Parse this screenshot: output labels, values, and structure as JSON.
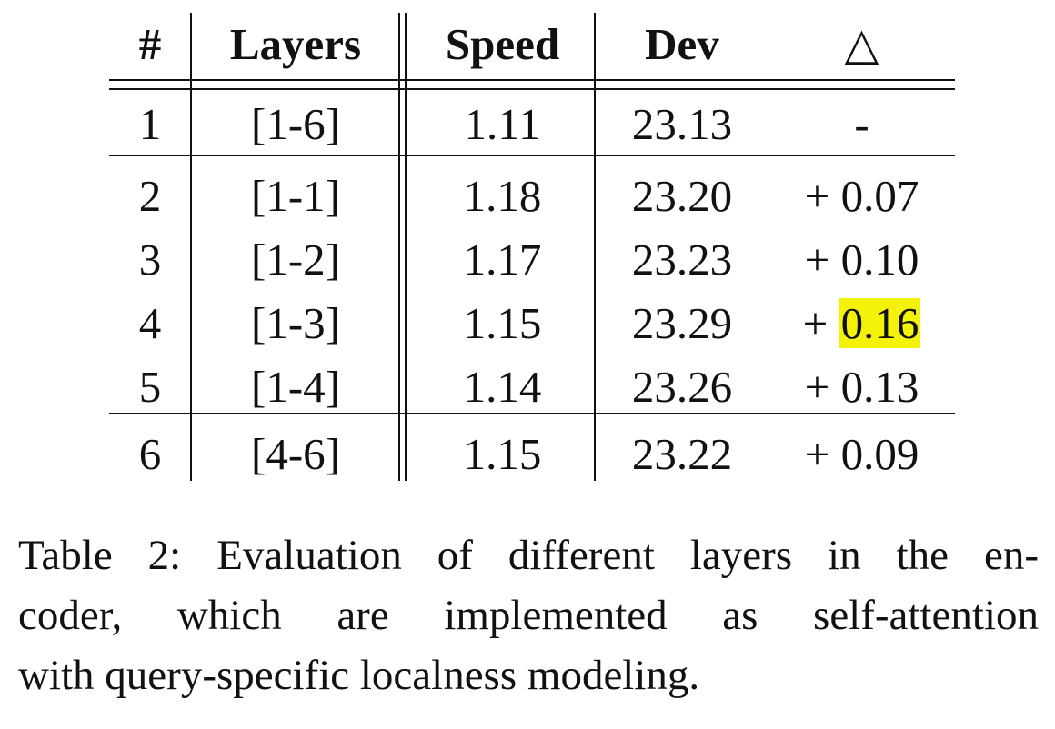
{
  "table": {
    "headers": {
      "num": "#",
      "layers": "Layers",
      "speed": "Speed",
      "dev": "Dev",
      "delta": "△"
    },
    "rows": [
      {
        "num": "1",
        "layers": "[1-6]",
        "speed": "1.11",
        "dev": "23.13",
        "delta_sign": "",
        "delta_value": "-",
        "highlighted": false
      },
      {
        "num": "2",
        "layers": "[1-1]",
        "speed": "1.18",
        "dev": "23.20",
        "delta_sign": "+",
        "delta_value": "0.07",
        "highlighted": false
      },
      {
        "num": "3",
        "layers": "[1-2]",
        "speed": "1.17",
        "dev": "23.23",
        "delta_sign": "+",
        "delta_value": "0.10",
        "highlighted": false
      },
      {
        "num": "4",
        "layers": "[1-3]",
        "speed": "1.15",
        "dev": "23.29",
        "delta_sign": "+",
        "delta_value": "0.16",
        "highlighted": true
      },
      {
        "num": "5",
        "layers": "[1-4]",
        "speed": "1.14",
        "dev": "23.26",
        "delta_sign": "+",
        "delta_value": "0.13",
        "highlighted": false
      },
      {
        "num": "6",
        "layers": "[4-6]",
        "speed": "1.15",
        "dev": "23.22",
        "delta_sign": "+",
        "delta_value": "0.09",
        "highlighted": false
      }
    ],
    "highlight_color": "#f5f20a"
  },
  "caption": {
    "lines": [
      "Table 2: Evaluation of different layers in the en-",
      "coder, which are implemented as self-attention",
      "with query-specific localness modeling."
    ]
  }
}
